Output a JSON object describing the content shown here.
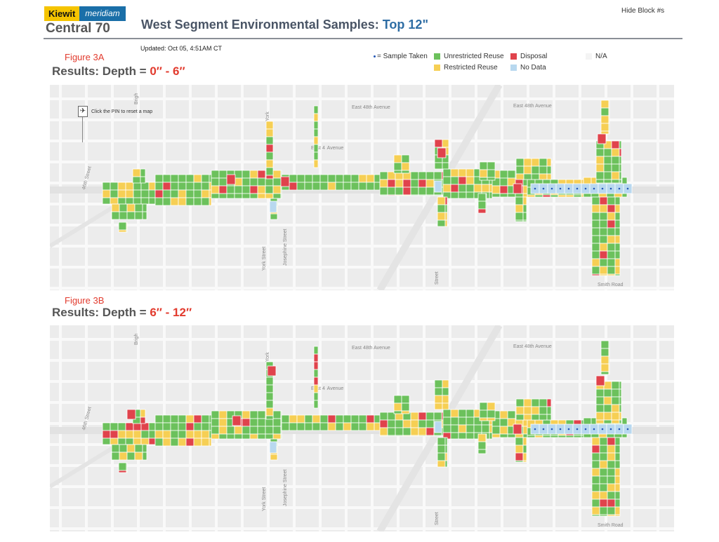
{
  "header": {
    "logo_primary": "Kiewit",
    "logo_secondary": "meridiam",
    "program": "Central 70",
    "title_main": "West Segment Environmental Samples: ",
    "title_highlight": "Top 12\"",
    "hide_block": "Hide Block #s",
    "updated": "Updated:  Oct 05, 4:51AM CT"
  },
  "legend": {
    "sample_taken": "= Sample Taken",
    "unrestricted": "Unrestricted Reuse",
    "disposal": "Disposal",
    "na": "N/A",
    "restricted": "Restricted Reuse",
    "no_data": "No Data"
  },
  "colors": {
    "unrestricted": "#6cc15c",
    "restricted": "#f6cf54",
    "disposal": "#e0434c",
    "no_data": "#b8d8ef",
    "na": "#f4f4f4",
    "sample_dot": "#2457b5",
    "figure_label": "#e23b2e"
  },
  "figures": [
    {
      "figure_label": "Figure 3A",
      "results_prefix": "Results: Depth = ",
      "depth_range": "0″ - 6″",
      "pin_hint": "Click the PIN to reset a map",
      "street_labels": [
        "East 48th Avenue",
        "East 48th Avenue",
        "East 4  Avenue",
        "46th Street",
        "Brigh",
        "York",
        "York Street",
        "Josephine Street",
        "Street",
        "Smith Road"
      ]
    },
    {
      "figure_label": "Figure 3B",
      "results_prefix": "Results: Depth = ",
      "depth_range": "6″ - 12″",
      "pin_hint": "",
      "street_labels": [
        "East 48th Avenue",
        "East 48th Avenue",
        "East 4  Avenue",
        "46th Street",
        "Brigh",
        "York",
        "York Street",
        "Josephine Street",
        "Street",
        "Smith Road"
      ]
    }
  ]
}
